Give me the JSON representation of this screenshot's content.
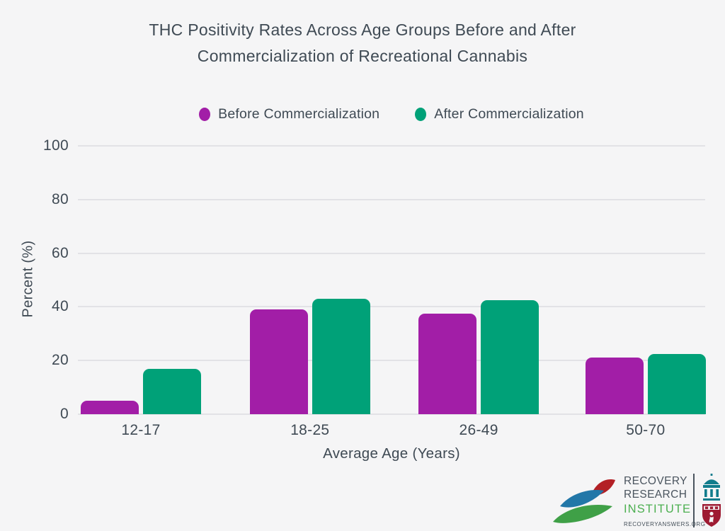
{
  "title": "THC Positivity Rates Across Age Groups Before and After\nCommercialization of Recreational Cannabis",
  "legend": [
    {
      "label": "Before Commercialization",
      "color": "#a21ea7"
    },
    {
      "label": "After Commercialization",
      "color": "#00a178"
    }
  ],
  "chart_data": {
    "type": "bar",
    "title": "THC Positivity Rates Across Age Groups Before and After Commercialization of Recreational Cannabis",
    "categories": [
      "12-17",
      "18-25",
      "26-49",
      "50-70"
    ],
    "series": [
      {
        "name": "Before Commercialization",
        "color": "#a21ea7",
        "values": [
          5,
          39,
          37.5,
          21
        ]
      },
      {
        "name": "After Commercialization",
        "color": "#00a178",
        "values": [
          17,
          43,
          42.5,
          22.5
        ]
      }
    ],
    "xlabel": "Average Age (Years)",
    "ylabel": "Percent (%)",
    "yticks": [
      0,
      20,
      40,
      60,
      80,
      100
    ],
    "ylim": [
      0,
      100
    ],
    "grid": true,
    "legend_position": "top-center"
  },
  "colors": {
    "background": "#f5f5f6",
    "text": "#3f4a54",
    "gridline": "#e2e2e6"
  },
  "logo": {
    "line1": "RECOVERY",
    "line2": "RESEARCH",
    "line3": "INSTITUTE",
    "url": "RECOVERYANSWERS.ORG",
    "institute_color": "#4caf50",
    "building_color": "#117c8c",
    "shield_color": "#9e1b32",
    "leaf_colors": [
      "#2277a8",
      "#b32025",
      "#3fa047"
    ]
  }
}
